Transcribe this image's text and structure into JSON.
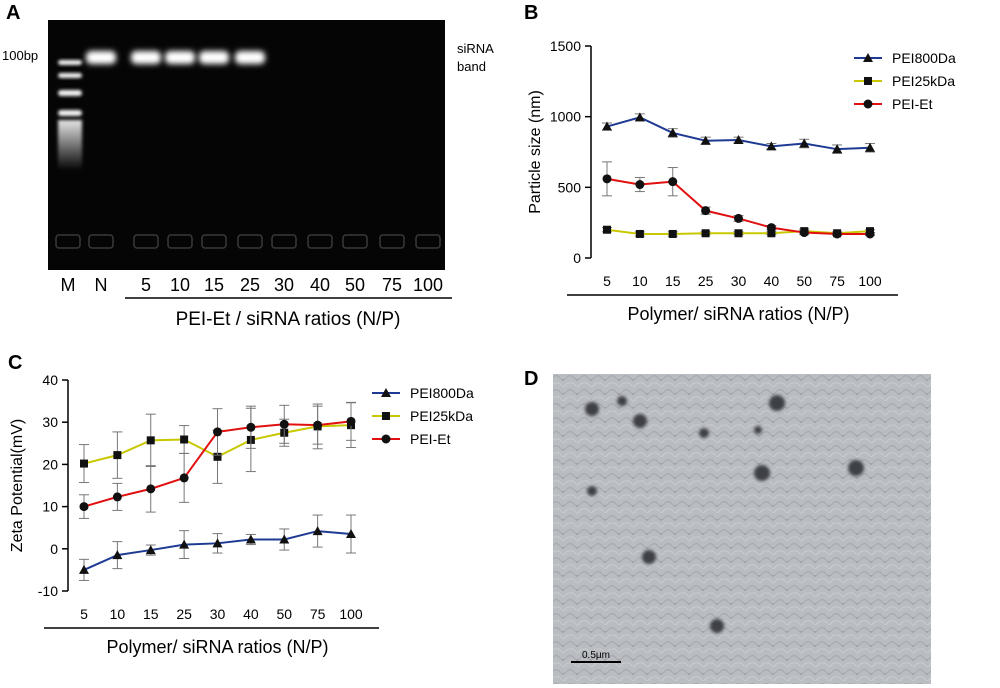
{
  "panels": {
    "a": {
      "letter": "A",
      "marker_label": "100bp",
      "band_label_line1": "siRNA",
      "band_label_line2": "band",
      "lanes": [
        "M",
        "N",
        "5",
        "10",
        "15",
        "25",
        "30",
        "40",
        "50",
        "75",
        "100"
      ],
      "xlabel": "PEI-Et / siRNA ratios (N/P)"
    },
    "b": {
      "letter": "B"
    },
    "c": {
      "letter": "C"
    },
    "d": {
      "letter": "D",
      "scale_label": "0.5μm"
    }
  },
  "colors": {
    "PEI800Da": "#1f3a93",
    "PEI25kDa": "#c8c800",
    "PEI-Et": "#e01010",
    "markers": "#111111",
    "errorbars": "#777777"
  },
  "chart_data": [
    {
      "type": "line",
      "panel": "B",
      "categories": [
        "5",
        "10",
        "15",
        "25",
        "30",
        "40",
        "50",
        "75",
        "100"
      ],
      "xlabel": "Polymer/ siRNA ratios (N/P)",
      "ylabel": "Particle size (nm)",
      "ylim": [
        0,
        1500
      ],
      "yticks": [
        0,
        500,
        1000,
        1500
      ],
      "legend_position": "top-right",
      "series": [
        {
          "name": "PEI800Da",
          "marker": "triangle",
          "values": [
            930,
            995,
            885,
            830,
            835,
            790,
            810,
            770,
            780
          ],
          "errors": [
            25,
            25,
            30,
            25,
            20,
            20,
            30,
            30,
            30
          ]
        },
        {
          "name": "PEI25kDa",
          "marker": "square",
          "values": [
            200,
            170,
            170,
            175,
            175,
            175,
            190,
            175,
            190
          ],
          "errors": [
            15,
            15,
            15,
            10,
            10,
            10,
            15,
            10,
            10
          ]
        },
        {
          "name": "PEI-Et",
          "marker": "circle",
          "values": [
            560,
            520,
            540,
            335,
            280,
            215,
            180,
            170,
            170
          ],
          "errors": [
            120,
            50,
            100,
            25,
            20,
            15,
            15,
            10,
            10
          ]
        }
      ]
    },
    {
      "type": "line",
      "panel": "C",
      "categories": [
        "5",
        "10",
        "15",
        "25",
        "30",
        "40",
        "50",
        "75",
        "100"
      ],
      "xlabel": "Polymer/ siRNA ratios (N/P)",
      "ylabel": "Zeta Potential(mV)",
      "ylim": [
        -10,
        40
      ],
      "yticks": [
        -10,
        0,
        10,
        20,
        30,
        40
      ],
      "legend_position": "top-right",
      "series": [
        {
          "name": "PEI800Da",
          "marker": "triangle",
          "values": [
            -5,
            -1.5,
            -0.3,
            1,
            1.3,
            2.2,
            2.2,
            4.2,
            3.5
          ],
          "errors": [
            2.5,
            3.2,
            1.2,
            3.3,
            2.3,
            1.2,
            2.5,
            3.8,
            4.5
          ]
        },
        {
          "name": "PEI25kDa",
          "marker": "square",
          "values": [
            20.2,
            22.2,
            25.7,
            25.9,
            21.8,
            25.8,
            27.5,
            29,
            29.3
          ],
          "errors": [
            4.5,
            5.5,
            6.2,
            3.3,
            6.3,
            7.5,
            3.2,
            5.3,
            5.3
          ]
        },
        {
          "name": "PEI-Et",
          "marker": "circle",
          "values": [
            10,
            12.3,
            14.2,
            16.8,
            27.7,
            28.8,
            29.5,
            29.3,
            30.2
          ],
          "errors": [
            2.8,
            3.2,
            5.5,
            5.8,
            5.5,
            5.0,
            4.5,
            4.5,
            4.5
          ]
        }
      ]
    }
  ]
}
